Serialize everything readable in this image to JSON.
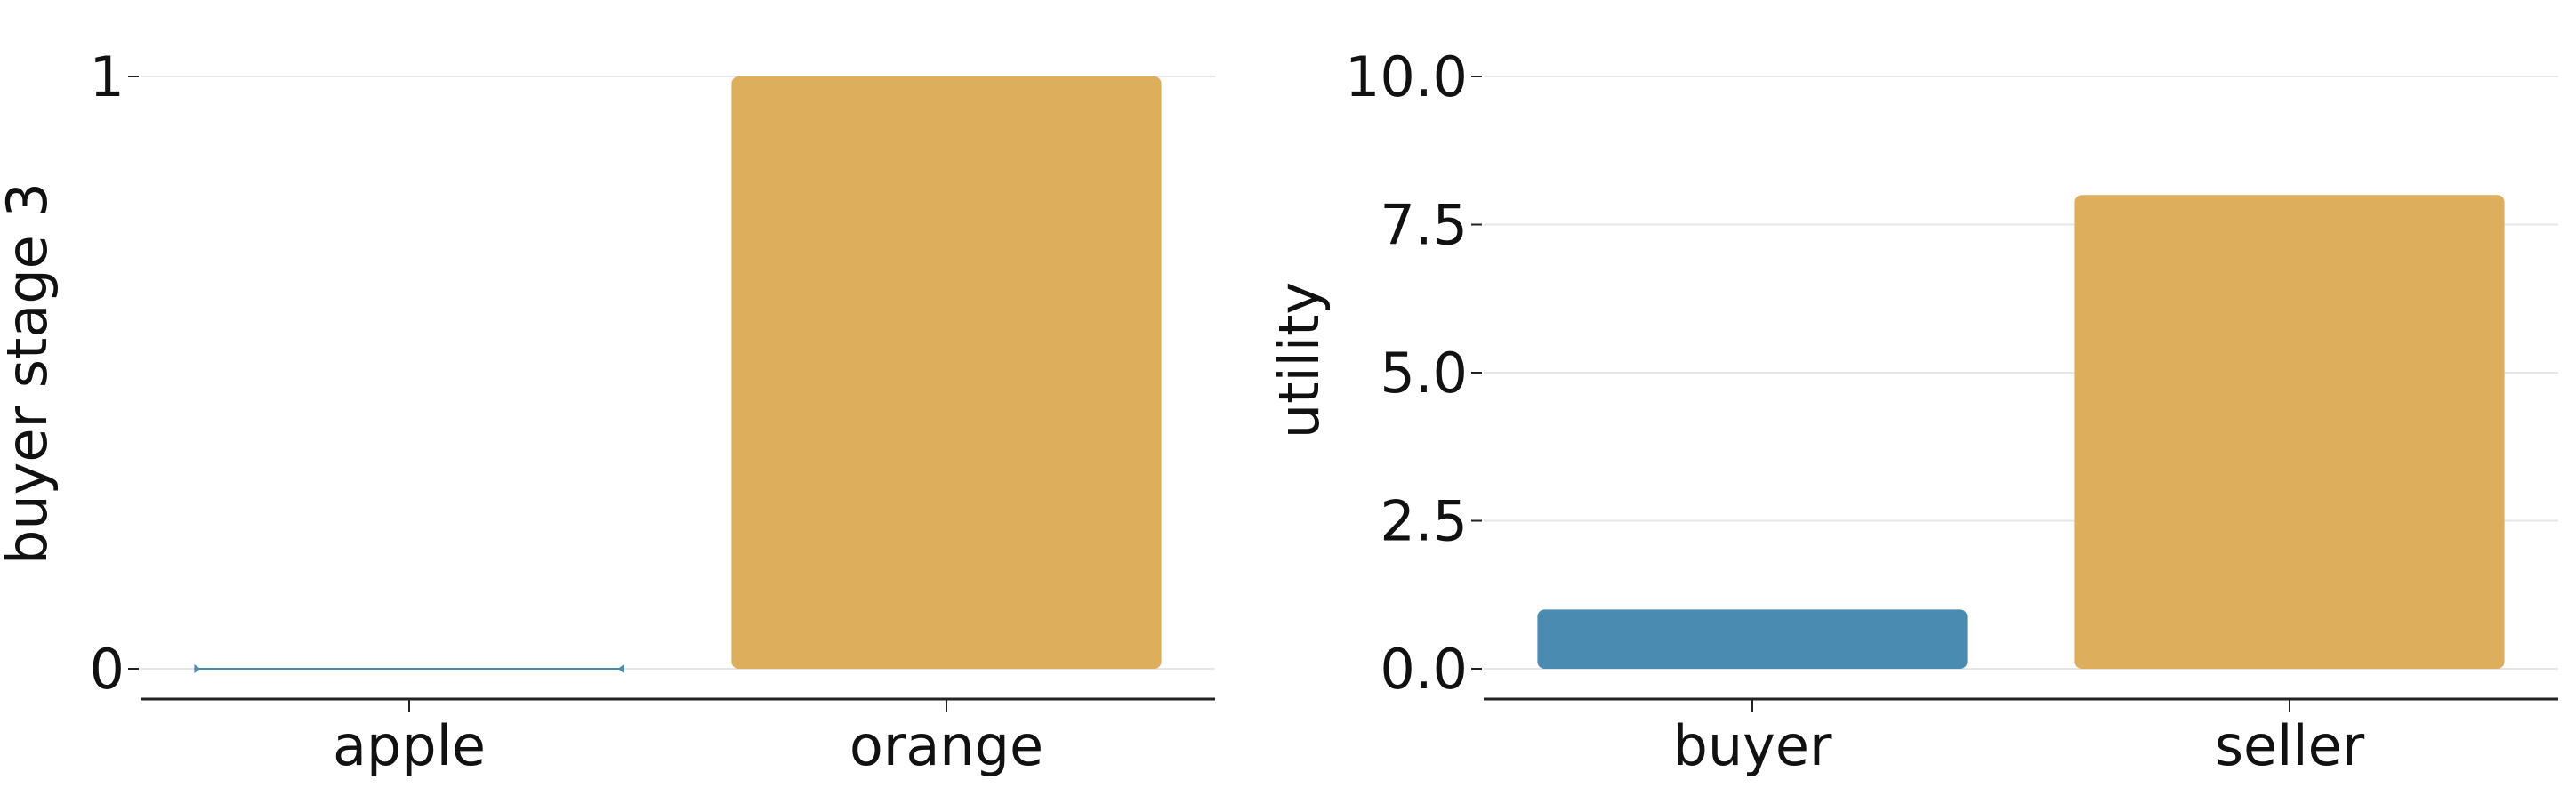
{
  "colors": {
    "series_a": "#4a8bb1",
    "series_b": "#ddae5c",
    "grid": "#e6e6e6",
    "axis": "#222222"
  },
  "chart_data": [
    {
      "type": "bar",
      "categories": [
        "apple",
        "orange"
      ],
      "values": [
        0,
        1
      ],
      "bar_colors": [
        "series_a",
        "series_b"
      ],
      "title": "",
      "xlabel": "",
      "ylabel": "buyer stage 3",
      "ylim": [
        0,
        1
      ],
      "yticks": [
        0,
        1
      ],
      "ytick_labels": [
        "0",
        "1"
      ],
      "grid": "horizontal"
    },
    {
      "type": "bar",
      "categories": [
        "buyer",
        "seller"
      ],
      "values": [
        1,
        8
      ],
      "bar_colors": [
        "series_a",
        "series_b"
      ],
      "title": "",
      "xlabel": "",
      "ylabel": "utility",
      "ylim": [
        0,
        10
      ],
      "yticks": [
        0,
        2.5,
        5,
        7.5,
        10
      ],
      "ytick_labels": [
        "0.0",
        "2.5",
        "5.0",
        "7.5",
        "10.0"
      ],
      "grid": "horizontal"
    }
  ]
}
